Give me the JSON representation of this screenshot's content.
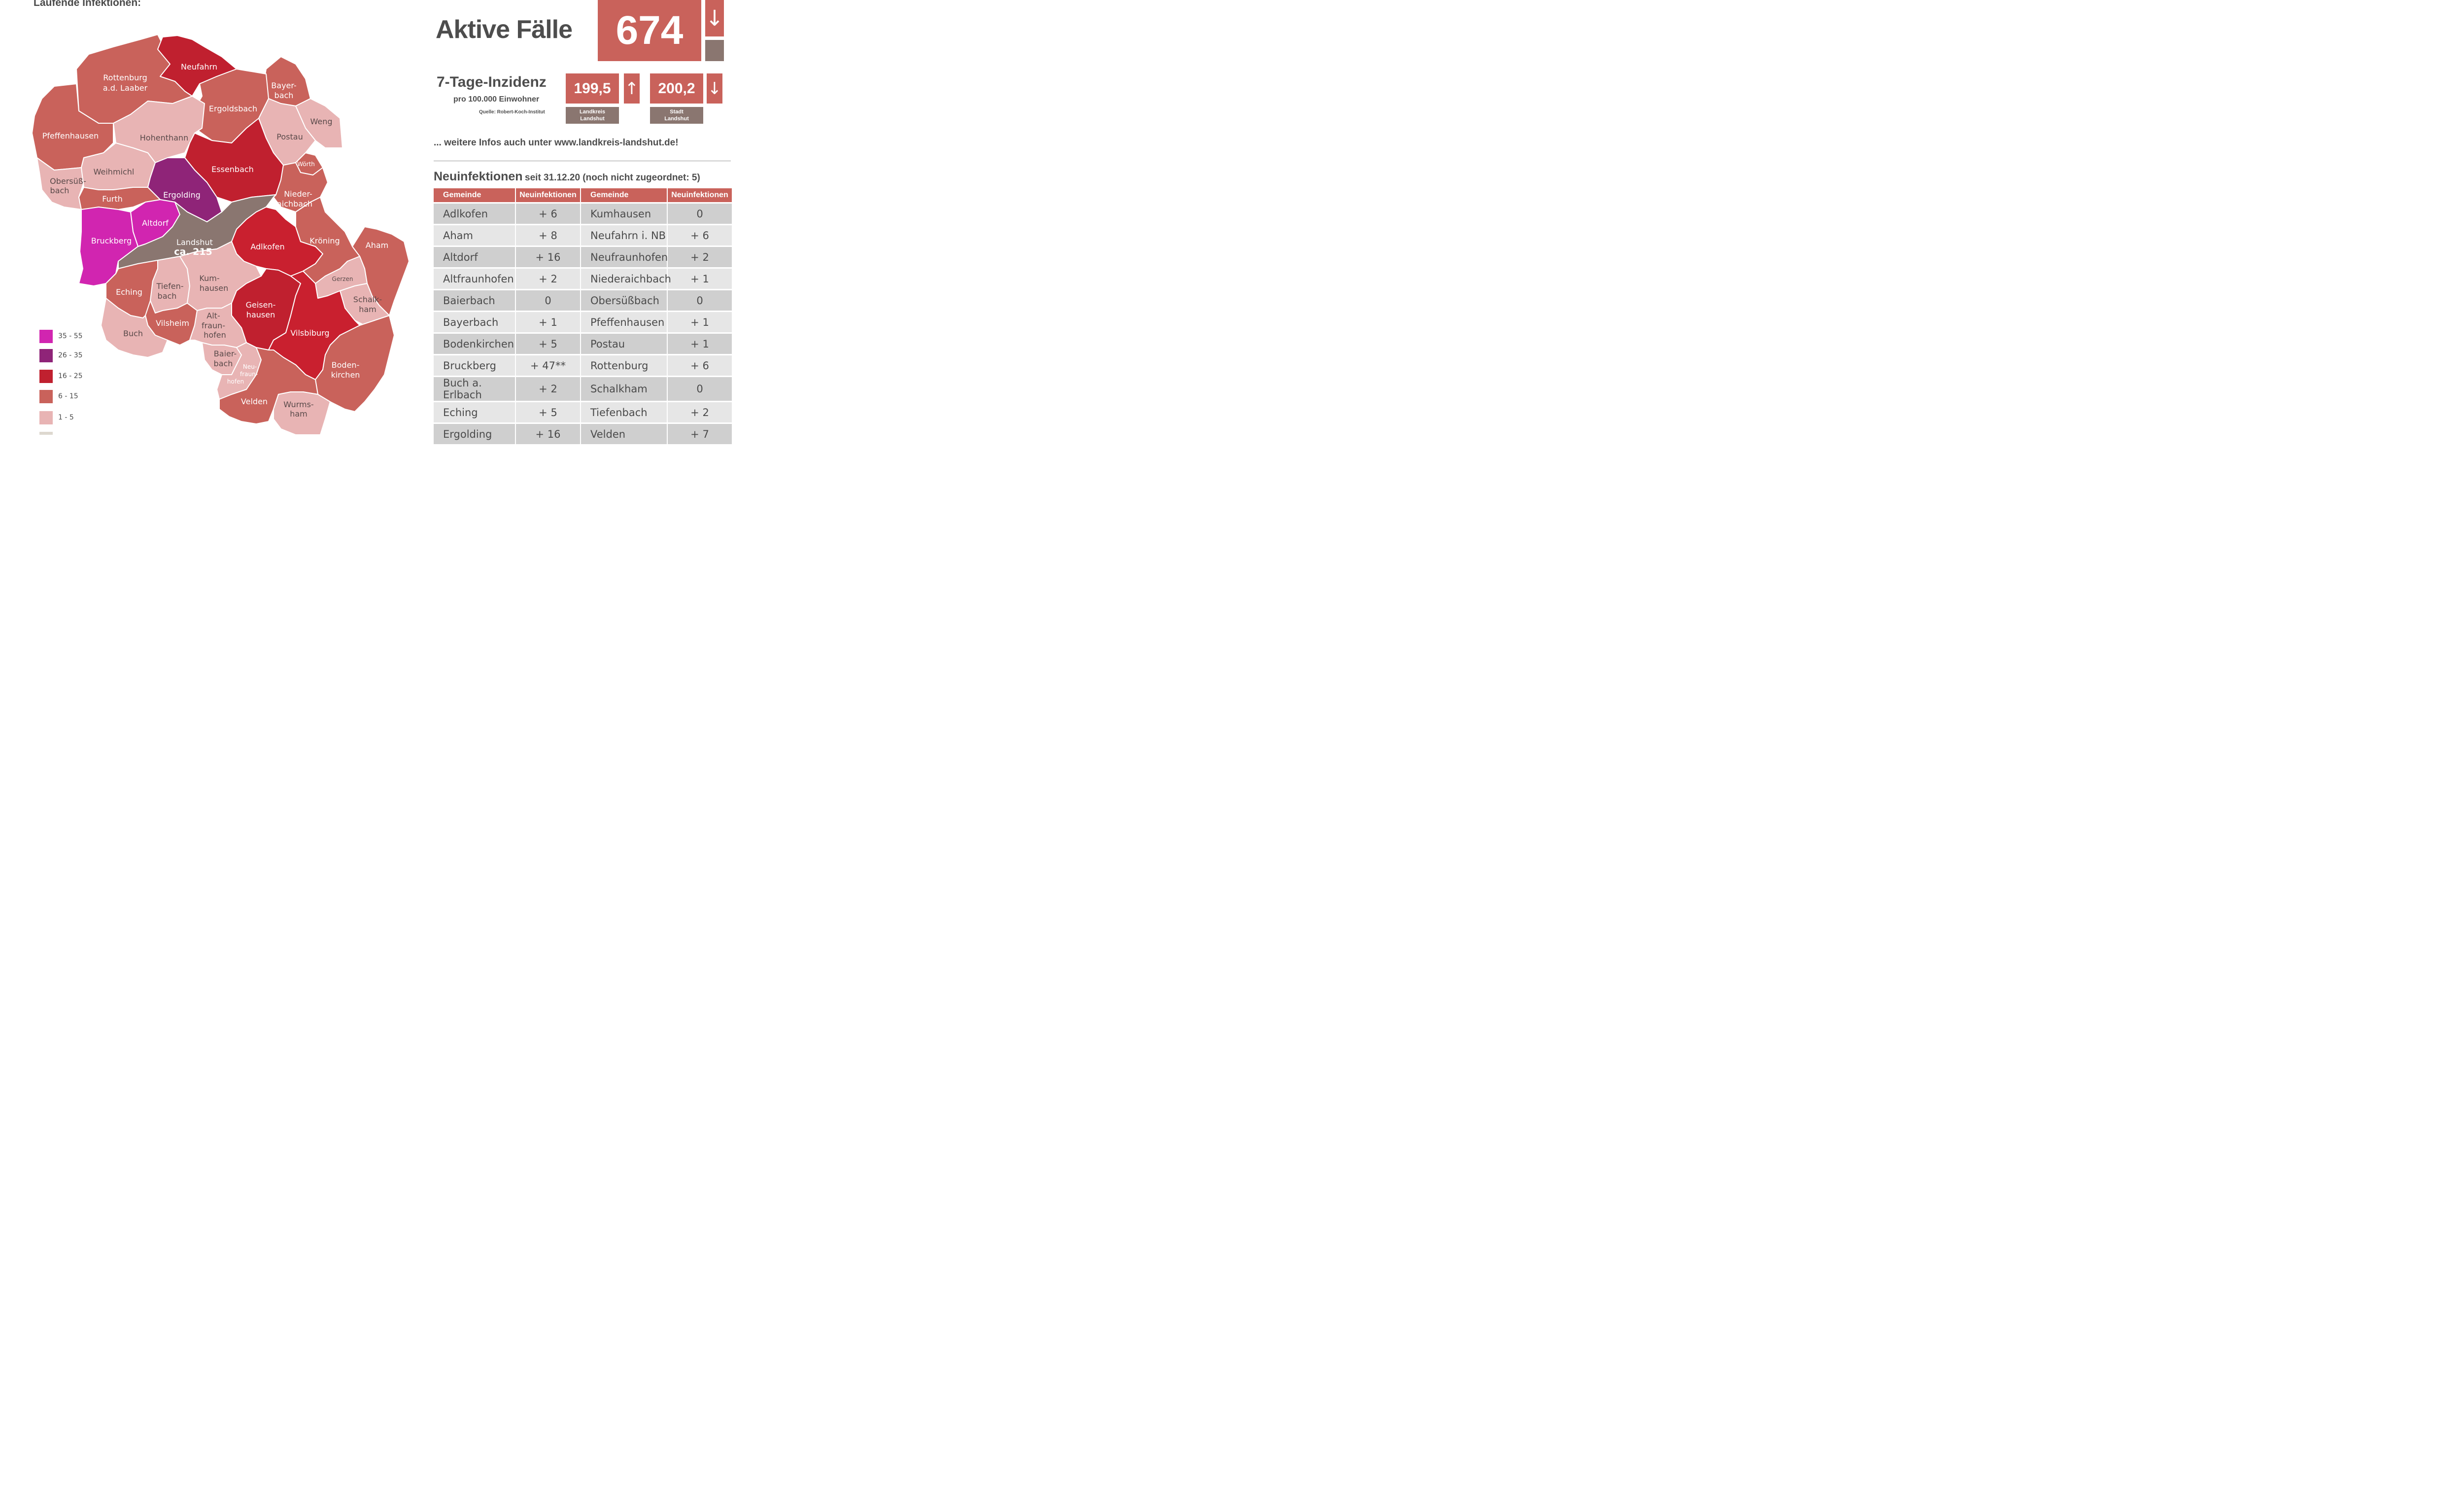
{
  "map_title": "Laufende Infektionen:",
  "colors": {
    "c35_55": "#d125b0",
    "c26_35": "#8f2478",
    "c16_25": "#c0202f",
    "c6_15": "#c9625b",
    "c1_5": "#e8b4b4",
    "c0": "#ddd8cf",
    "city": "#8a7670"
  },
  "legend": [
    {
      "label": "35 - 55",
      "color": "#d125b0"
    },
    {
      "label": "26 - 35",
      "color": "#8f2478"
    },
    {
      "label": "16 - 25",
      "color": "#c0202f"
    },
    {
      "label": "6 - 15",
      "color": "#c9625b"
    },
    {
      "label": "1 - 5",
      "color": "#e8b4b4"
    }
  ],
  "map_labels": {
    "neufahrn": "Neufahrn",
    "rottenburg_1": "Rottenburg",
    "rottenburg_2": "a.d. Laaber",
    "bayerbach_1": "Bayer-",
    "bayerbach_2": "bach",
    "ergoldsbach": "Ergoldsbach",
    "weng": "Weng",
    "pfeffenhausen": "Pfeffenhausen",
    "hohenthann": "Hohenthann",
    "postau": "Postau",
    "woerth": "Wörth",
    "essenbach": "Essenbach",
    "obersuessbach_1": "Obersüß-",
    "obersuessbach_2": "bach",
    "weihmichl": "Weihmichl",
    "ergolding": "Ergolding",
    "niederaichbach_1": "Nieder-",
    "niederaichbach_2": "aichbach",
    "furth": "Furth",
    "altdorf": "Altdorf",
    "bruckberg": "Bruckberg",
    "landshut_1": "Landshut",
    "landshut_2": "ca. 215",
    "adlkofen": "Adlkofen",
    "kroening": "Kröning",
    "aham": "Aham",
    "eching": "Eching",
    "tiefenbach_1": "Tiefen-",
    "tiefenbach_2": "bach",
    "kumhausen_1": "Kum-",
    "kumhausen_2": "hausen",
    "gerzen": "Gerzen",
    "geisenhausen_1": "Geisen-",
    "geisenhausen_2": "hausen",
    "schalkham_1": "Schalk-",
    "schalkham_2": "ham",
    "vilsheim": "Vilsheim",
    "altfraunhofen_1": "Alt-",
    "altfraunhofen_2": "fraun-",
    "altfraunhofen_3": "hofen",
    "buch": "Buch",
    "vilsbiburg": "Vilsbiburg",
    "baierbach_1": "Baier-",
    "baierbach_2": "bach",
    "neufraunhofen_1": "Neu-",
    "neufraunhofen_2": "fraun-",
    "neufraunhofen_3": "hofen",
    "bodenkirchen_1": "Boden-",
    "bodenkirchen_2": "kirchen",
    "velden": "Velden",
    "wurmsham_1": "Wurms-",
    "wurmsham_2": "ham"
  },
  "aktive": {
    "label": "Aktive Fälle",
    "value": "674",
    "arrow": "↓"
  },
  "inzidenz": {
    "title": "7-Tage-Inzidenz",
    "subtitle": "pro 100.000 Einwohner",
    "source": "Quelle: Robert-Koch-Institut",
    "landkreis": {
      "value": "199,5",
      "arrow": "↑",
      "cap1": "Landkreis",
      "cap2": "Landshut"
    },
    "stadt": {
      "value": "200,2",
      "arrow": "↓",
      "cap1": "Stadt",
      "cap2": "Landshut"
    }
  },
  "more_info": "... weitere Infos auch unter www.landkreis-landshut.de!",
  "neu": {
    "title": "Neuinfektionen",
    "subtitle": "seit 31.12.20 (noch nicht zugeordnet: 5)"
  },
  "table": {
    "headers": [
      "Gemeinde",
      "Neuinfektionen",
      "Gemeinde",
      "Neuinfektionen"
    ],
    "rows": [
      [
        "Adlkofen",
        "+ 6",
        "Kumhausen",
        "0"
      ],
      [
        "Aham",
        "+ 8",
        "Neufahrn i. NB",
        "+ 6"
      ],
      [
        "Altdorf",
        "+ 16",
        "Neufraunhofen",
        "+ 2"
      ],
      [
        "Altfraunhofen",
        "+ 2",
        "Niederaichbach",
        "+ 1"
      ],
      [
        "Baierbach",
        "0",
        "Obersüßbach",
        "0"
      ],
      [
        "Bayerbach",
        "+ 1",
        "Pfeffenhausen",
        "+ 1"
      ],
      [
        "Bodenkirchen",
        "+ 5",
        "Postau",
        "+ 1"
      ],
      [
        "Bruckberg",
        "+ 47**",
        "Rottenburg",
        "+ 6"
      ],
      [
        "Buch a. Erlbach",
        "+ 2",
        "Schalkham",
        "0"
      ],
      [
        "Eching",
        "+ 5",
        "Tiefenbach",
        "+ 2"
      ],
      [
        "Ergolding",
        "+ 16",
        "Velden",
        "+ 7"
      ]
    ]
  }
}
